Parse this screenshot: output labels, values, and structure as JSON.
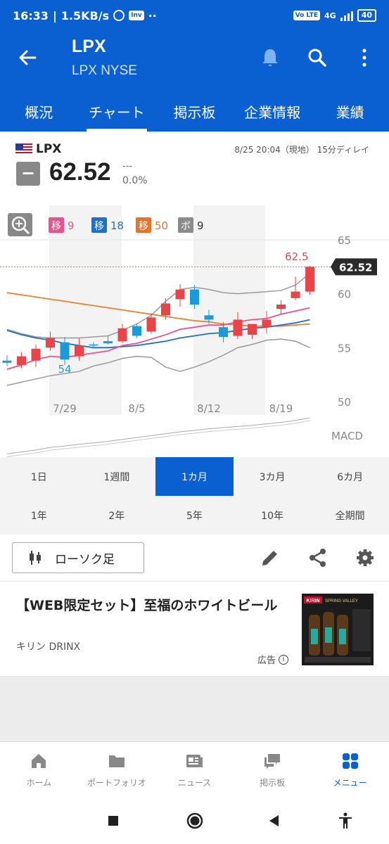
{
  "status_bar": {
    "time": "16:33",
    "speed": "1.5KB/s",
    "inv_badge": "Inv",
    "dots": "··",
    "volte": "Vo LTE",
    "net": "4G",
    "battery": "40"
  },
  "header": {
    "title": "LPX",
    "subtitle": "LPX NYSE",
    "icons": [
      "back-arrow-icon",
      "bell-icon",
      "search-icon",
      "more-vert-icon"
    ]
  },
  "tabs": [
    {
      "label": "概況",
      "active": false
    },
    {
      "label": "チャート",
      "active": true
    },
    {
      "label": "掲示板",
      "active": false
    },
    {
      "label": "企業情報",
      "active": false
    },
    {
      "label": "業績",
      "active": false
    }
  ],
  "quote": {
    "symbol": "LPX",
    "timestamp": "8/25 20:04（現地） 15分ディレイ",
    "change_sign": "−",
    "price": "62.52",
    "change": "---",
    "change_pct": "0.0%"
  },
  "chart_data": {
    "type": "candlestick",
    "indicators": [
      {
        "tag": "移",
        "value": "9",
        "color": "#e8528f"
      },
      {
        "tag": "移",
        "value": "18",
        "color": "#1f6fc9"
      },
      {
        "tag": "移",
        "value": "50",
        "color": "#e8732a"
      },
      {
        "tag": "ボ",
        "value": "9",
        "color": "#8c8c8c"
      }
    ],
    "y_ticks": [
      "65",
      "60",
      "55",
      "50"
    ],
    "ylim": [
      50,
      65
    ],
    "x_ticks": [
      "7/29",
      "8/5",
      "8/12",
      "8/19"
    ],
    "last_price_label": "62.52",
    "high_label": "62.5",
    "low_label": "54",
    "macd_label": "MACD",
    "candles": [
      {
        "o": 53.8,
        "h": 54.3,
        "l": 53.3,
        "c": 53.6
      },
      {
        "o": 53.4,
        "h": 54.6,
        "l": 53.1,
        "c": 54.2
      },
      {
        "o": 53.8,
        "h": 55.3,
        "l": 53.2,
        "c": 54.9
      },
      {
        "o": 55.0,
        "h": 56.5,
        "l": 54.7,
        "c": 55.9
      },
      {
        "o": 55.5,
        "h": 56.0,
        "l": 53.4,
        "c": 53.9
      },
      {
        "o": 54.2,
        "h": 55.9,
        "l": 53.8,
        "c": 55.2
      },
      {
        "o": 55.3,
        "h": 55.5,
        "l": 54.9,
        "c": 55.2
      },
      {
        "o": 55.6,
        "h": 56.1,
        "l": 55.3,
        "c": 55.4
      },
      {
        "o": 55.6,
        "h": 57.2,
        "l": 55.4,
        "c": 56.8
      },
      {
        "o": 57.0,
        "h": 57.2,
        "l": 55.9,
        "c": 56.1
      },
      {
        "o": 56.5,
        "h": 58.2,
        "l": 56.3,
        "c": 57.8
      },
      {
        "o": 58.0,
        "h": 59.6,
        "l": 57.6,
        "c": 59.1
      },
      {
        "o": 59.5,
        "h": 60.9,
        "l": 58.8,
        "c": 60.4
      },
      {
        "o": 60.4,
        "h": 60.8,
        "l": 58.6,
        "c": 59.0
      },
      {
        "o": 58.0,
        "h": 58.5,
        "l": 57.2,
        "c": 57.6
      },
      {
        "o": 56.9,
        "h": 57.4,
        "l": 55.5,
        "c": 56.0
      },
      {
        "o": 56.1,
        "h": 58.3,
        "l": 55.8,
        "c": 57.6
      },
      {
        "o": 56.2,
        "h": 57.2,
        "l": 55.8,
        "c": 57.2
      },
      {
        "o": 56.9,
        "h": 58.4,
        "l": 56.3,
        "c": 57.6
      },
      {
        "o": 58.6,
        "h": 59.4,
        "l": 58.1,
        "c": 59.0
      },
      {
        "o": 59.6,
        "h": 61.6,
        "l": 59.4,
        "c": 60.2
      },
      {
        "o": 60.2,
        "h": 62.6,
        "l": 59.9,
        "c": 62.5
      }
    ],
    "ma9": [
      53.0,
      53.4,
      53.9,
      54.2,
      54.1,
      54.3,
      54.5,
      54.7,
      55.2,
      55.4,
      55.8,
      56.2,
      56.7,
      56.9,
      57.1,
      57.1,
      57.4,
      57.6,
      57.7,
      58.1,
      58.4,
      58.7
    ],
    "ma18": [
      56.6,
      56.2,
      55.9,
      55.7,
      55.4,
      55.2,
      55.0,
      55.0,
      55.1,
      55.2,
      55.4,
      55.6,
      55.9,
      56.1,
      56.3,
      56.4,
      56.6,
      56.8,
      56.9,
      57.1,
      57.3,
      57.6
    ],
    "ma50": [
      60.1,
      59.9,
      59.7,
      59.5,
      59.3,
      59.1,
      58.9,
      58.7,
      58.5,
      58.3,
      58.1,
      57.9,
      57.7,
      57.5,
      57.4,
      57.2,
      57.1,
      57.0,
      57.0,
      57.0,
      57.1,
      57.2
    ],
    "boll_upper": [
      56.7,
      56.3,
      56.0,
      55.9,
      55.9,
      55.9,
      56.0,
      56.1,
      56.6,
      57.2,
      58.0,
      59.3,
      60.4,
      60.6,
      60.4,
      60.1,
      60.0,
      60.1,
      60.2,
      60.3,
      60.8,
      61.9
    ],
    "boll_lower": [
      51.5,
      51.8,
      52.1,
      52.4,
      52.6,
      52.8,
      53.3,
      53.6,
      54.0,
      54.2,
      54.1,
      53.2,
      52.8,
      53.2,
      53.7,
      54.3,
      55.0,
      55.3,
      55.7,
      55.8,
      55.6,
      55.0
    ],
    "macd": [
      0.05,
      0.1,
      0.15,
      0.22,
      0.26,
      0.3,
      0.34,
      0.38,
      0.43,
      0.48,
      0.53,
      0.58,
      0.63,
      0.67,
      0.71,
      0.74,
      0.77,
      0.8,
      0.84,
      0.88,
      0.93,
      1.0
    ]
  },
  "ranges": [
    {
      "label": "1日",
      "active": false
    },
    {
      "label": "1週間",
      "active": false
    },
    {
      "label": "1カ月",
      "active": true
    },
    {
      "label": "3カ月",
      "active": false
    },
    {
      "label": "6カ月",
      "active": false
    },
    {
      "label": "1年",
      "active": false
    },
    {
      "label": "2年",
      "active": false
    },
    {
      "label": "5年",
      "active": false
    },
    {
      "label": "10年",
      "active": false
    },
    {
      "label": "全期間",
      "active": false
    }
  ],
  "toolbar": {
    "chart_type_label": "ローソク足",
    "icons": [
      "candlestick-icon",
      "pencil-icon",
      "share-icon",
      "gear-icon"
    ]
  },
  "ad": {
    "title": "【WEB限定セット】至福のホワイトビール",
    "brand": "キリン DRINX",
    "label": "広告",
    "info_glyph": "i",
    "image_brand": "KIRIN",
    "image_product": "SPRING VALLEY"
  },
  "bottom_nav": [
    {
      "label": "ホーム",
      "icon": "home-icon",
      "active": false
    },
    {
      "label": "ポートフォリオ",
      "icon": "folder-icon",
      "active": false
    },
    {
      "label": "ニュース",
      "icon": "news-icon",
      "active": false
    },
    {
      "label": "掲示板",
      "icon": "chat-icon",
      "active": false
    },
    {
      "label": "メニュー",
      "icon": "grid-icon",
      "active": true
    }
  ],
  "system_nav": [
    "recents-icon",
    "home-circle-icon",
    "back-triangle-icon",
    "accessibility-icon"
  ],
  "colors": {
    "brand_blue": "#0a5fd1",
    "up_red": "#e8444a",
    "down_blue": "#1a9bd7"
  }
}
